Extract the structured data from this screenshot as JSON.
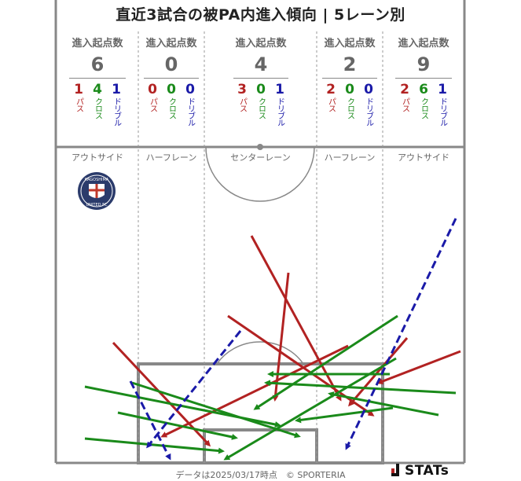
{
  "title": "直近3試合の被PA内進入傾向 | 5レーン別",
  "header_label": "進入起点数",
  "type_labels": {
    "pass": "パス",
    "cross": "クロス",
    "dribble": "ドリブル"
  },
  "colors": {
    "pass": "#b22222",
    "cross": "#1a8a1a",
    "dribble": "#1a1aa8",
    "line": "#888888"
  },
  "lanes": [
    {
      "name": "アウトサイド",
      "total": "6",
      "pass": "1",
      "cross": "4",
      "dribble": "1"
    },
    {
      "name": "ハーフレーン",
      "total": "0",
      "pass": "0",
      "cross": "0",
      "dribble": "0"
    },
    {
      "name": "センターレーン",
      "total": "4",
      "pass": "3",
      "cross": "0",
      "dribble": "1"
    },
    {
      "name": "ハーフレーン",
      "total": "2",
      "pass": "2",
      "cross": "0",
      "dribble": "0"
    },
    {
      "name": "アウトサイド",
      "total": "9",
      "pass": "2",
      "cross": "6",
      "dribble": "1"
    }
  ],
  "team_badge": {
    "top_text": "KAGOSHIMA",
    "bottom_text": "UNITED FC"
  },
  "footer": "データは2025/03/17時点　© SPORTERIA",
  "brand": "STATs"
}
